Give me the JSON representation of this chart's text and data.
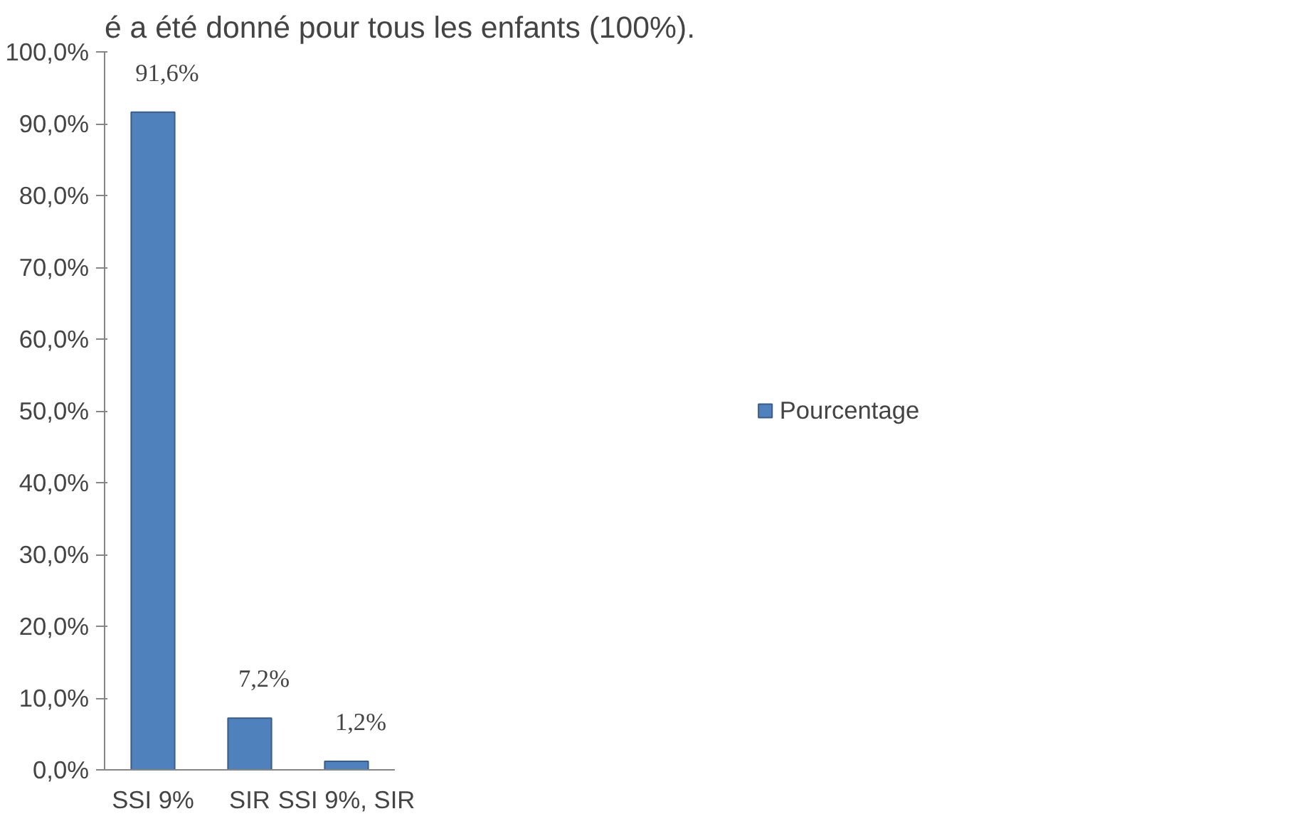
{
  "chart_data": {
    "type": "bar",
    "annotations": [
      "é a été donné pour tous les  enfants (100%)."
    ],
    "categories": [
      "SSI 9%",
      "SIR",
      "SSI 9%, SIR"
    ],
    "series": [
      {
        "name": "Pourcentage",
        "color": "#4f81bd",
        "values": [
          91.6,
          7.2,
          1.2
        ],
        "value_labels": [
          "91,6%",
          "7,2%",
          "1,2%"
        ]
      }
    ],
    "ylim": [
      0,
      100
    ],
    "yticks": [
      {
        "value": 0,
        "label": "0,0%"
      },
      {
        "value": 10,
        "label": "10,0%"
      },
      {
        "value": 20,
        "label": "20,0%"
      },
      {
        "value": 30,
        "label": "30,0%"
      },
      {
        "value": 40,
        "label": "40,0%"
      },
      {
        "value": 50,
        "label": "50,0%"
      },
      {
        "value": 60,
        "label": "60,0%"
      },
      {
        "value": 70,
        "label": "70,0%"
      },
      {
        "value": 80,
        "label": "80,0%"
      },
      {
        "value": 90,
        "label": "90,0%"
      },
      {
        "value": 100,
        "label": "100,0%"
      }
    ],
    "grid": false,
    "legend": "right"
  }
}
